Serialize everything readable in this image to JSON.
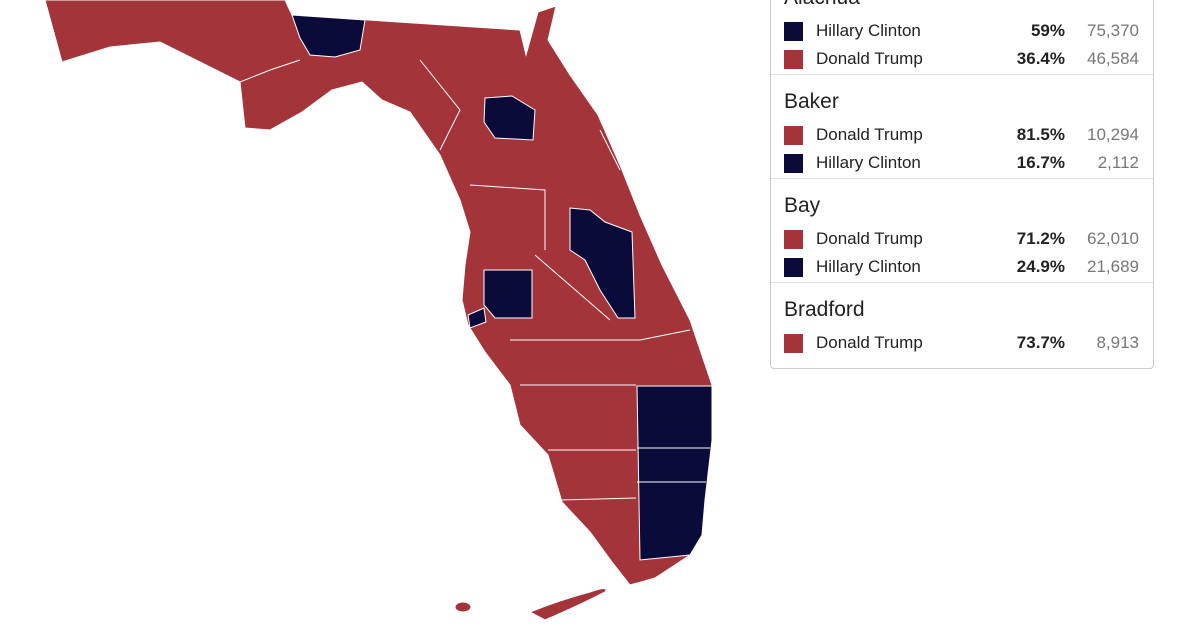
{
  "counties": [
    {
      "name": "Alachua",
      "results": [
        {
          "candidate": "Hillary Clinton",
          "color": "#0b0b3b",
          "percent": "59%",
          "votes": "75,370"
        },
        {
          "candidate": "Donald Trump",
          "color": "#a3343a",
          "percent": "36.4%",
          "votes": "46,584"
        }
      ]
    },
    {
      "name": "Baker",
      "results": [
        {
          "candidate": "Donald Trump",
          "color": "#a3343a",
          "percent": "81.5%",
          "votes": "10,294"
        },
        {
          "candidate": "Hillary Clinton",
          "color": "#0b0b3b",
          "percent": "16.7%",
          "votes": "2,112"
        }
      ]
    },
    {
      "name": "Bay",
      "results": [
        {
          "candidate": "Donald Trump",
          "color": "#a3343a",
          "percent": "71.2%",
          "votes": "62,010"
        },
        {
          "candidate": "Hillary Clinton",
          "color": "#0b0b3b",
          "percent": "24.9%",
          "votes": "21,689"
        }
      ]
    },
    {
      "name": "Bradford",
      "results": [
        {
          "candidate": "Donald Trump",
          "color": "#a3343a",
          "percent": "73.7%",
          "votes": "8,913"
        }
      ]
    }
  ]
}
